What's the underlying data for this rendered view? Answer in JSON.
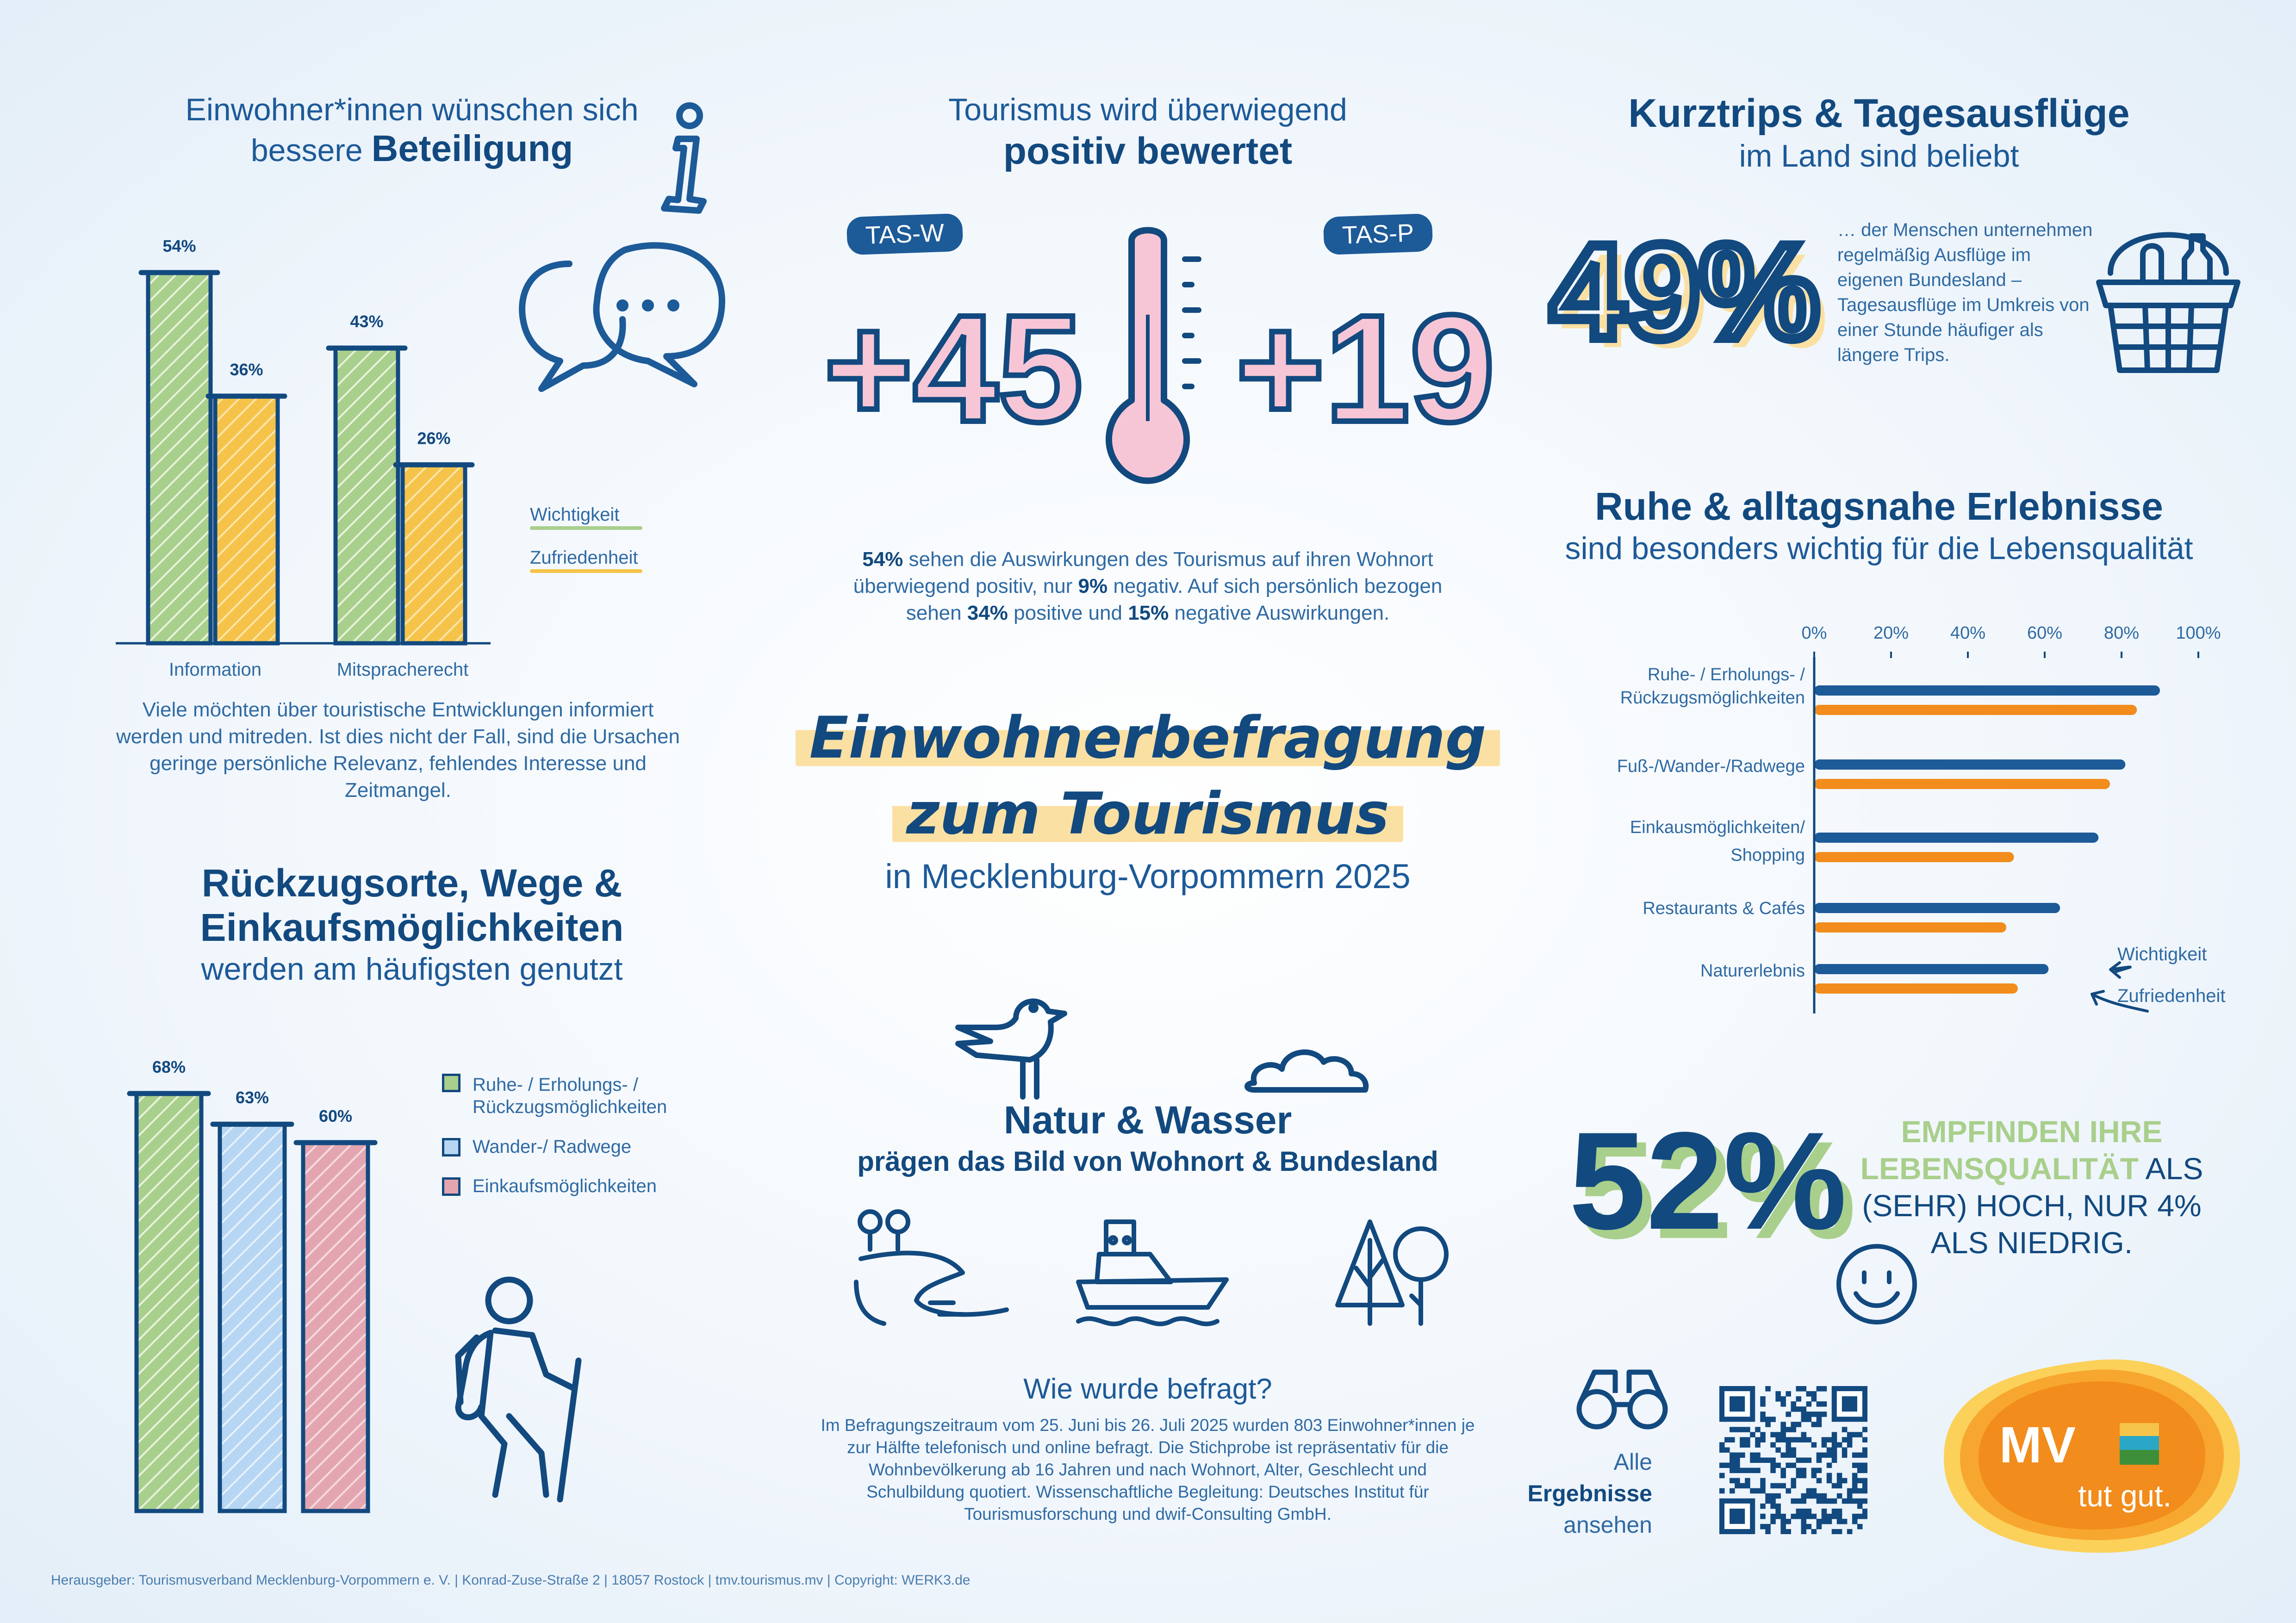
{
  "participation": {
    "title_light": "Einwohner*innen wünschen sich",
    "title_pre": "bessere",
    "title_bold": "Beteiligung",
    "text": "Viele möchten über touristische Entwicklungen informiert werden und mitreden. Ist dies nicht der Fall, sind die Ursachen geringe persönliche Relevanz, fehlendes Interesse und Zeitmangel.",
    "legend": [
      "Wichtigkeit",
      "Zufriedenheit"
    ]
  },
  "tourism": {
    "title_light": "Tourismus wird überwiegend",
    "title_bold": "positiv bewertet",
    "tas_w_label": "TAS-W",
    "tas_w_value": "+45",
    "tas_p_label": "TAS-P",
    "tas_p_value": "+19",
    "p1": "54%",
    "t1": " sehen die Auswirkungen des Tourismus auf ihren Wohnort überwiegend positiv, nur ",
    "p2": "9%",
    "t2": " negativ. Auf sich persönlich bezogen sehen ",
    "p3": "34%",
    "t3": " positive und ",
    "p4": "15%",
    "t4": " negative Auswirkungen."
  },
  "trips": {
    "title_bold": "Kurztrips & Tagesausflüge",
    "title_light": "im Land sind beliebt",
    "big": "49%",
    "text": "… der Menschen unter­nehmen regelmäßig Aus­flüge im eigenen Bundes­land – Tagesausflüge im Umkreis von einer Stunde häufiger als längere Trips."
  },
  "main_title": {
    "line1": "Einwohnerbefragung",
    "line2": "zum Tourismus",
    "line3": "in Mecklenburg-Vorpommern 2025"
  },
  "quiet": {
    "title_bold": "Ruhe & alltagsnahe Erlebnisse",
    "title_light": "sind besonders wichtig für die Lebensqualität",
    "annot_w": "Wichtigkeit",
    "annot_z": "Zufriedenheit"
  },
  "retreat": {
    "title_bold1": "Rückzugsorte, Wege &",
    "title_bold2": "Einkaufsmöglichkeiten",
    "title_light": "werden am häufigsten genutzt"
  },
  "nature": {
    "title_bold": "Natur & Wasser",
    "subtitle": "prägen das Bild von Wohnort & Bundesland"
  },
  "quality": {
    "big": "52%",
    "line1": "EMPFINDEN IHRE",
    "line2a": "LEBENSQUALITÄT",
    "line2b": " ALS",
    "line3": "(SEHR) HOCH, NUR 4%",
    "line4": "ALS NIEDRIG."
  },
  "method": {
    "title": "Wie wurde befragt?",
    "text": "Im Befragungszeitraum vom 25. Juni bis 26. Juli 2025 wurden 803 Ein­wohner*innen je zur Hälfte telefonisch und online befragt. Die Stichprobe ist repräsentativ für die Wohnbevölkerung ab 16 Jahren und nach Wohnort, Alter, Geschlecht und Schulbildung quotiert. Wissenschaftliche Begleitung: Deut­sches Institut für Tourismusforschung und dwif-Consulting GmbH."
  },
  "results": {
    "l1": "Alle",
    "l2": "Ergebnisse",
    "l3": "ansehen"
  },
  "logo": {
    "mv": "MV",
    "slogan": "tut gut."
  },
  "footer": "Herausgeber: Tourismusverband Mecklenburg-Vorpommern e. V. | Konrad-Zuse-Straße 2 | 18057 Rostock | tmv.tourismus.mv | Copyright: WERK3.de",
  "colors": {
    "navy": "#12497f",
    "green": "#a9cf8c",
    "yellow": "#f6c34a",
    "orange": "#f28c1c",
    "lightblue": "#b7d6f4",
    "rose": "#e3a6b0",
    "pink": "#f7c6d6"
  },
  "chart_data": [
    {
      "type": "bar",
      "categories": [
        "Information",
        "Mitspracherecht"
      ],
      "series": [
        {
          "name": "Wichtigkeit",
          "values": [
            54,
            43
          ]
        },
        {
          "name": "Zufriedenheit",
          "values": [
            36,
            26
          ]
        }
      ],
      "value_labels": [
        "54%",
        "36%",
        "43%",
        "26%"
      ],
      "ylim": [
        0,
        60
      ]
    },
    {
      "type": "bar",
      "categories": [
        "Ruhe- / Erholungs- / Rückzugsmöglichkeiten",
        "Wander-/ Radwege",
        "Einkaufsmöglichkeiten"
      ],
      "values": [
        68,
        63,
        60
      ],
      "value_labels": [
        "68%",
        "63%",
        "60%"
      ],
      "ylim": [
        0,
        75
      ]
    },
    {
      "type": "bar",
      "orientation": "horizontal",
      "categories": [
        "Ruhe- / Erholungs- / Rückzugsmöglichkeiten",
        "Fuß-/Wander-/Radwege",
        "Einkausmöglichkeiten/ Shopping",
        "Restaurants & Cafés",
        "Naturerlebnis"
      ],
      "series": [
        {
          "name": "Wichtigkeit",
          "values": [
            90,
            81,
            74,
            64,
            61
          ]
        },
        {
          "name": "Zufriedenheit",
          "values": [
            84,
            77,
            52,
            50,
            53
          ]
        }
      ],
      "x_ticks": [
        "0%",
        "20%",
        "40%",
        "60%",
        "80%",
        "100%"
      ],
      "xlim": [
        0,
        100
      ]
    }
  ]
}
